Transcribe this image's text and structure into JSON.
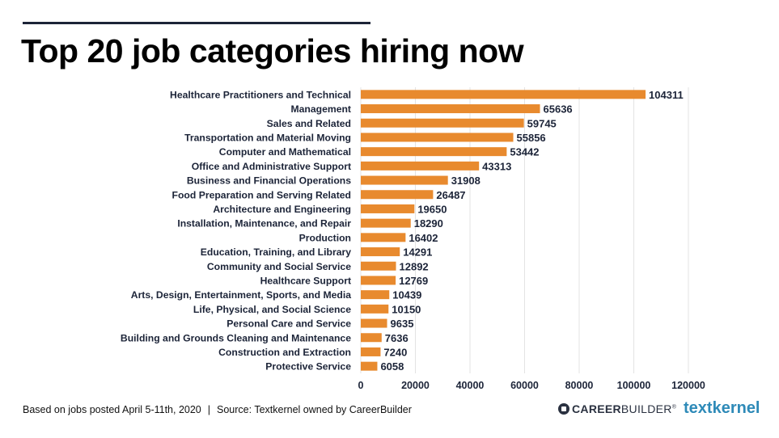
{
  "title": "Top 20 job categories hiring now",
  "colors": {
    "bar": "#E88A2E",
    "grid": "#e3e3e3",
    "label": "#1c2438",
    "accent_line": "#1c2438"
  },
  "chart_data": {
    "type": "bar",
    "orientation": "horizontal",
    "title": "Top 20 job categories hiring now",
    "xlabel": "",
    "ylabel": "",
    "xlim": [
      0,
      120000
    ],
    "xticks": [
      0,
      20000,
      40000,
      60000,
      80000,
      100000,
      120000
    ],
    "xtick_labels": [
      "0",
      "20000",
      "40000",
      "60000",
      "80000",
      "100000",
      "120000"
    ],
    "grid": true,
    "legend": "none",
    "categories": [
      "Healthcare Practitioners and Technical",
      "Management",
      "Sales and Related",
      "Transportation and Material Moving",
      "Computer and Mathematical",
      "Office and Administrative Support",
      "Business and Financial Operations",
      "Food Preparation and Serving Related",
      "Architecture and Engineering",
      "Installation, Maintenance, and Repair",
      "Production",
      "Education, Training, and Library",
      "Community and Social Service",
      "Healthcare Support",
      "Arts, Design, Entertainment, Sports, and Media",
      "Life, Physical, and Social Science",
      "Personal Care and Service",
      "Building and Grounds Cleaning and Maintenance",
      "Construction and Extraction",
      "Protective Service"
    ],
    "values": [
      104311,
      65636,
      59745,
      55856,
      53442,
      43313,
      31908,
      26487,
      19650,
      18290,
      16402,
      14291,
      12892,
      12769,
      10439,
      10150,
      9635,
      7636,
      7240,
      6058
    ]
  },
  "footer": {
    "note": "Based on jobs posted April 5-11th, 2020",
    "separator": "|",
    "source": "Source: Textkernel owned by CareerBuilder"
  },
  "logos": {
    "careerbuilder_bold": "CAREER",
    "careerbuilder_light": "BUILDER",
    "careerbuilder_mark": "®",
    "textkernel": "textkernel"
  }
}
